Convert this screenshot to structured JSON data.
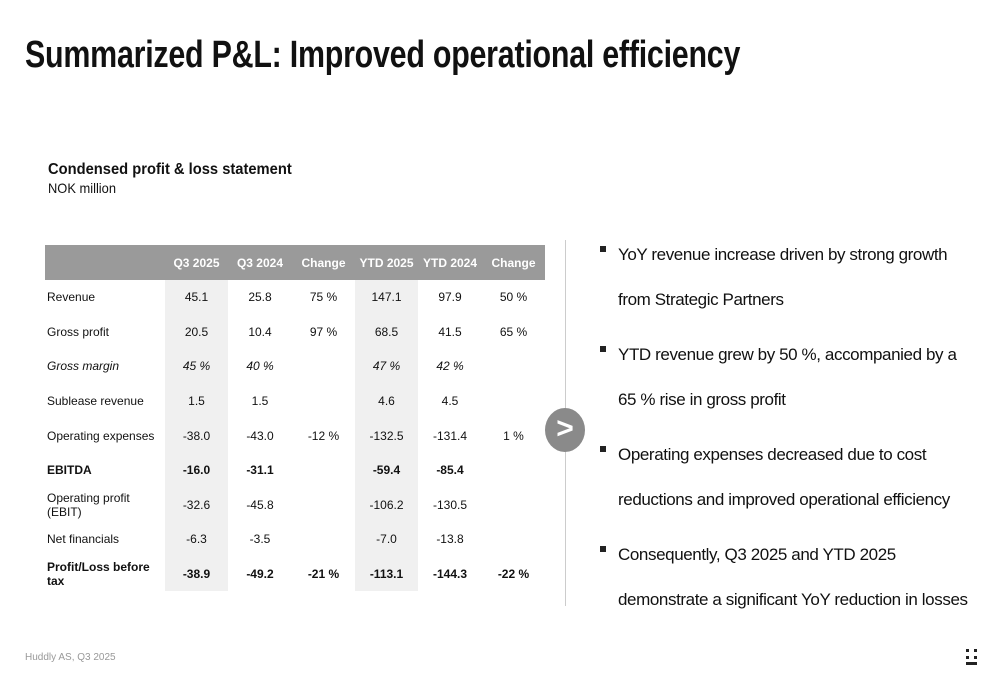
{
  "header": {
    "title": "Summarized P&L: Improved operational efficiency"
  },
  "table_title": "Condensed profit & loss statement",
  "table_unit": "NOK million",
  "table": {
    "columns": [
      "Q3 2025",
      "Q3 2024",
      "Change",
      "YTD 2025",
      "YTD 2024",
      "Change"
    ],
    "rows": [
      {
        "label": "Revenue",
        "cells": [
          "45.1",
          "25.8",
          "75 %",
          "147.1",
          "97.9",
          "50 %"
        ]
      },
      {
        "label": "Gross profit",
        "cells": [
          "20.5",
          "10.4",
          "97 %",
          "68.5",
          "41.5",
          "65 %"
        ]
      },
      {
        "label": "Gross margin",
        "cells": [
          "45 %",
          "40 %",
          null,
          "47 %",
          "42 %",
          null
        ]
      },
      {
        "label": "Sublease revenue",
        "cells": [
          "1.5",
          "1.5",
          null,
          "4.6",
          "4.5",
          null
        ]
      },
      {
        "label": "Operating expenses",
        "cells": [
          "-38.0",
          "-43.0",
          "-12 %",
          "-132.5",
          "-131.4",
          "1 %"
        ]
      },
      {
        "label": "EBITDA",
        "cells": [
          "-16.0",
          "-31.1",
          null,
          "-59.4",
          "-85.4",
          null
        ]
      },
      {
        "label": "Operating profit (EBIT)",
        "cells": [
          "-32.6",
          "-45.8",
          null,
          "-106.2",
          "-130.5",
          null
        ]
      },
      {
        "label": "Net financials",
        "cells": [
          "-6.3",
          "-3.5",
          null,
          "-7.0",
          "-13.8",
          null
        ]
      },
      {
        "label": "Profit/Loss before tax",
        "cells": [
          "-38.9",
          "-49.2",
          "-21 %",
          "-113.1",
          "-144.3",
          "-22 %"
        ]
      }
    ]
  },
  "arrow": ">",
  "bullets": [
    {
      "lines": [
        "YoY revenue increase driven by strong growth",
        "from Strategic Partners"
      ]
    },
    {
      "lines": [
        "YTD revenue grew by 50 %, accompanied by a",
        "65 % rise in gross profit"
      ]
    },
    {
      "lines": [
        "Operating expenses decreased due to cost",
        "reductions and improved operational efficiency"
      ]
    },
    {
      "lines": [
        "Consequently, Q3 2025 and YTD 2025",
        "demonstrate a significant YoY reduction in losses"
      ]
    }
  ],
  "footer": "Huddly AS, Q3 2025"
}
